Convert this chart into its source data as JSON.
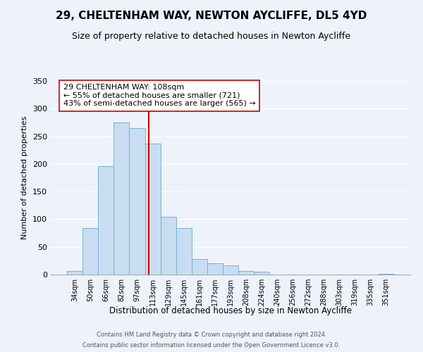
{
  "title": "29, CHELTENHAM WAY, NEWTON AYCLIFFE, DL5 4YD",
  "subtitle": "Size of property relative to detached houses in Newton Aycliffe",
  "xlabel": "Distribution of detached houses by size in Newton Aycliffe",
  "ylabel": "Number of detached properties",
  "bar_labels": [
    "34sqm",
    "50sqm",
    "66sqm",
    "82sqm",
    "97sqm",
    "113sqm",
    "129sqm",
    "145sqm",
    "161sqm",
    "177sqm",
    "193sqm",
    "208sqm",
    "224sqm",
    "240sqm",
    "256sqm",
    "272sqm",
    "288sqm",
    "303sqm",
    "319sqm",
    "335sqm",
    "351sqm"
  ],
  "bar_heights": [
    6,
    84,
    196,
    275,
    265,
    237,
    104,
    84,
    28,
    20,
    16,
    7,
    5,
    0,
    0,
    0,
    0,
    0,
    0,
    0,
    1
  ],
  "bar_color": "#c9ddf2",
  "bar_edge_color": "#7bafd4",
  "vline_color": "#cc0000",
  "annotation_text": "29 CHELTENHAM WAY: 108sqm\n← 55% of detached houses are smaller (721)\n43% of semi-detached houses are larger (565) →",
  "annotation_box_facecolor": "#ffffff",
  "annotation_box_edgecolor": "#cc0000",
  "ylim": [
    0,
    350
  ],
  "yticks": [
    0,
    50,
    100,
    150,
    200,
    250,
    300,
    350
  ],
  "footer_line1": "Contains HM Land Registry data © Crown copyright and database right 2024.",
  "footer_line2": "Contains public sector information licensed under the Open Government Licence v3.0.",
  "bg_color": "#edf2fb",
  "grid_color": "#ffffff"
}
